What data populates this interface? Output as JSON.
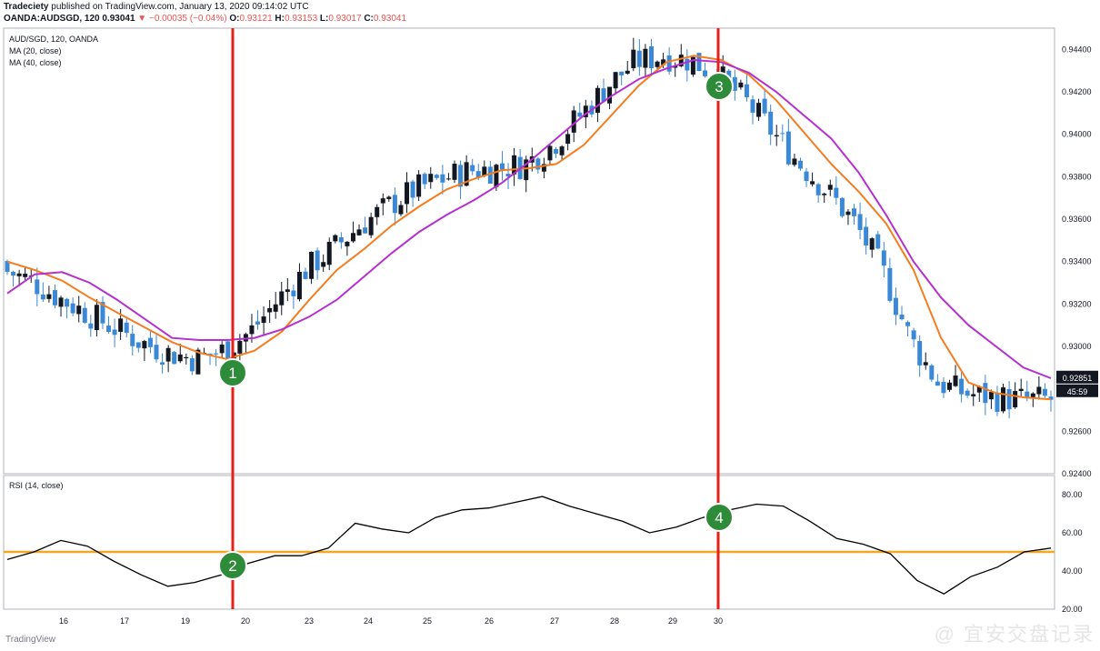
{
  "header": {
    "publisher": "Tradeciety",
    "published_line": " published on TradingView.com, January 13, 2020 09:14:02 UTC",
    "symbol_line": "OANDA:AUDSGD, 120",
    "last": "0.93041",
    "change": "▼ −0.00035 (−0.04%)",
    "o_label": "O:",
    "o": "0.93121",
    "h_label": "H:",
    "h": "0.93153",
    "l_label": "L:",
    "l": "0.93017",
    "c_label": "C:",
    "c": "0.93041"
  },
  "legend": {
    "title": "AUD/SGD, 120, OANDA",
    "ma20": "MA (20, close)",
    "ma40": "MA (40, close)",
    "rsi": "RSI (14, close)"
  },
  "price_tag": {
    "value": "0.92851",
    "countdown": "45:59"
  },
  "footer": {
    "brand": "TradingView"
  },
  "watermark": "@ 宜安交盘记录",
  "colors": {
    "bull": "#131722",
    "bear": "#3a88d6",
    "ma20": "#f57c1f",
    "ma40": "#b52fd1",
    "rsi": "#000000",
    "rsi_level": "#f5a623",
    "marker_line": "#e8201a",
    "marker_circle": "#2e8b3a",
    "grid_border": "#b2b5be"
  },
  "markers": [
    {
      "label": "1",
      "pane": "price"
    },
    {
      "label": "2",
      "pane": "rsi"
    },
    {
      "label": "3",
      "pane": "price"
    },
    {
      "label": "4",
      "pane": "rsi"
    }
  ],
  "chart_data": [
    {
      "type": "candlestick",
      "title": "AUD/SGD, 120, OANDA",
      "ylim": [
        0.924,
        0.945
      ],
      "y_ticks": [
        "0.94400",
        "0.94200",
        "0.94000",
        "0.93800",
        "0.93600",
        "0.93400",
        "0.93200",
        "0.93000",
        "0.92600",
        "0.92400"
      ],
      "x_ticks": [
        "16",
        "17",
        "19",
        "20",
        "23",
        "24",
        "25",
        "26",
        "27",
        "28",
        "29",
        "30"
      ],
      "series": [
        {
          "name": "MA (20, close)",
          "values": [
            0.934,
            0.9336,
            0.9331,
            0.9323,
            0.9316,
            0.9309,
            0.9302,
            0.9297,
            0.9294,
            0.9298,
            0.9307,
            0.9322,
            0.9336,
            0.9346,
            0.9357,
            0.9366,
            0.9374,
            0.9379,
            0.9383,
            0.9384,
            0.9386,
            0.9395,
            0.9409,
            0.9423,
            0.9434,
            0.9437,
            0.9435,
            0.9428,
            0.9416,
            0.9401,
            0.9386,
            0.9373,
            0.9358,
            0.9336,
            0.9304,
            0.9283,
            0.9278,
            0.9276,
            0.9275
          ]
        },
        {
          "name": "MA (40, close)",
          "values": [
            0.9325,
            0.9334,
            0.9335,
            0.933,
            0.9322,
            0.9313,
            0.9304,
            0.9303,
            0.9303,
            0.9304,
            0.9308,
            0.9314,
            0.9322,
            0.9333,
            0.9344,
            0.9354,
            0.9362,
            0.9369,
            0.9377,
            0.9387,
            0.9398,
            0.9409,
            0.9418,
            0.9426,
            0.9431,
            0.9435,
            0.9434,
            0.9429,
            0.942,
            0.9409,
            0.9398,
            0.9382,
            0.9362,
            0.934,
            0.9323,
            0.931,
            0.93,
            0.929,
            0.9285
          ]
        }
      ],
      "markers_x": [
        19.8,
        29.4
      ]
    },
    {
      "type": "line",
      "title": "RSI (14, close)",
      "ylim": [
        20,
        90
      ],
      "y_ticks": [
        "80.00",
        "60.00",
        "40.00",
        "20.00"
      ],
      "reference_line": 50,
      "series": [
        {
          "name": "RSI (14, close)",
          "values": [
            46,
            50,
            56,
            53,
            45,
            38,
            32,
            34,
            38,
            44,
            48,
            48,
            52,
            65,
            62,
            60,
            68,
            72,
            73,
            76,
            79,
            74,
            70,
            66,
            60,
            63,
            68,
            72,
            75,
            74,
            66,
            57,
            54,
            49,
            35,
            28,
            37,
            42,
            50,
            52
          ]
        }
      ]
    }
  ]
}
